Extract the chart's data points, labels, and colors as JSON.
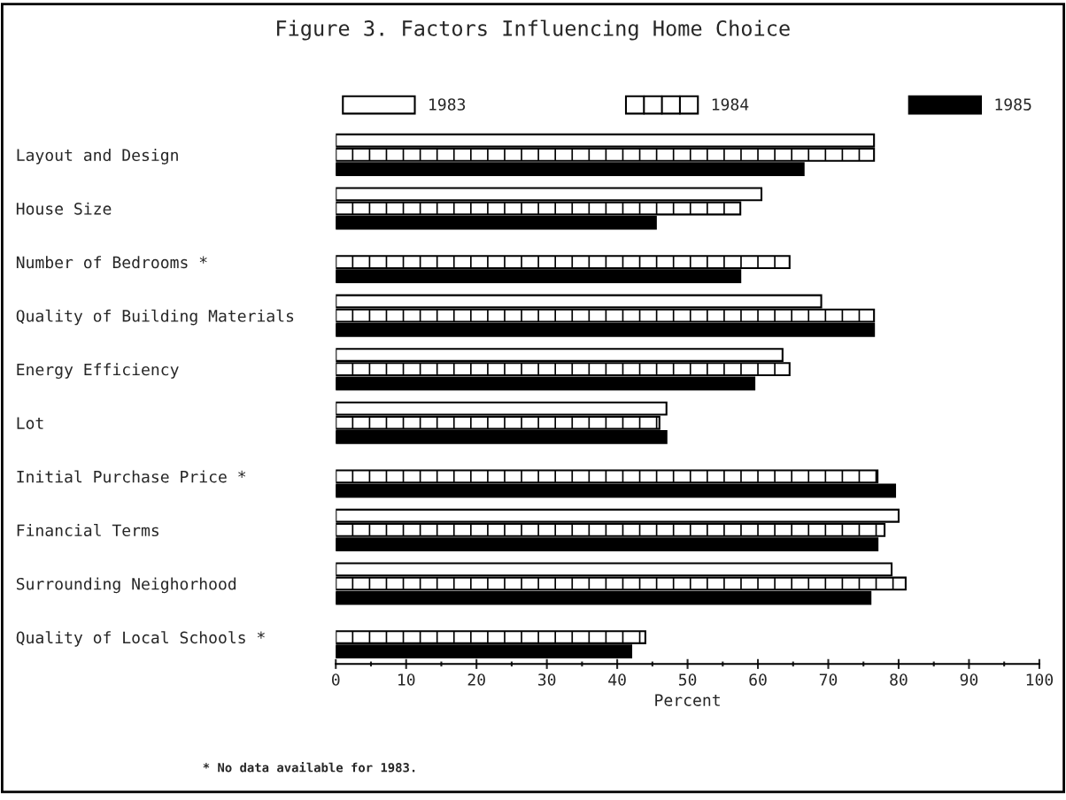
{
  "chart_data": {
    "type": "bar",
    "orientation": "horizontal",
    "title": "Figure 3. Factors Influencing Home Choice",
    "xlabel": "Percent",
    "categories": [
      "Layout and Design",
      "House Size",
      "Number of Bedrooms *",
      "Quality of Building Materials",
      "Energy Efficiency",
      "Lot",
      "Initial Purchase Price *",
      "Financial Terms",
      "Surrounding Neighorhood",
      "Quality of Local Schools *"
    ],
    "series": [
      {
        "name": "1983",
        "color": "#ffffff",
        "values": [
          76.5,
          60.5,
          null,
          69,
          63.5,
          47,
          null,
          80,
          79,
          null
        ]
      },
      {
        "name": "1984",
        "color": "#ffffff",
        "values": [
          76.5,
          57.5,
          64.5,
          76.5,
          64.5,
          46,
          77,
          78,
          81,
          44
        ]
      },
      {
        "name": "1985",
        "color": "#000000",
        "values": [
          66.5,
          45.5,
          57.5,
          76.5,
          59.5,
          47,
          79.5,
          77,
          76,
          42
        ]
      }
    ],
    "xlim": [
      0,
      100
    ],
    "xticks": [
      0,
      10,
      20,
      30,
      40,
      50,
      60,
      70,
      80,
      90,
      100
    ],
    "legend": "top",
    "grid": false,
    "annotations": [
      "* No data available for 1983."
    ]
  }
}
